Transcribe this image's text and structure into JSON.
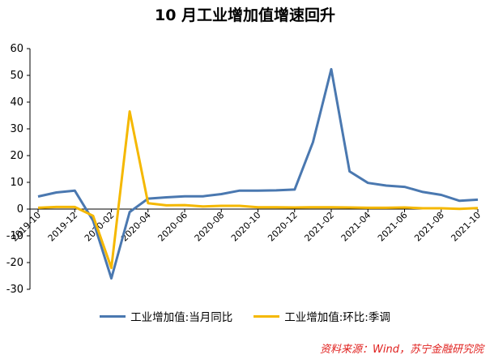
{
  "chart_data": {
    "type": "line",
    "title": "10 月工业增加值增速回升",
    "ylim": [
      -30,
      60
    ],
    "yticks": [
      -30,
      -20,
      -10,
      0,
      10,
      20,
      30,
      40,
      50,
      60
    ],
    "categories": [
      "2019-10",
      "2019-11",
      "2019-12",
      "2020-01",
      "2020-02",
      "2020-03",
      "2020-04",
      "2020-05",
      "2020-06",
      "2020-07",
      "2020-08",
      "2020-09",
      "2020-10",
      "2020-11",
      "2020-12",
      "2021-01",
      "2021-02",
      "2021-03",
      "2021-04",
      "2021-05",
      "2021-06",
      "2021-07",
      "2021-08",
      "2021-09",
      "2021-10"
    ],
    "tick_labels": [
      "2019-10",
      "2019-12",
      "2020-02",
      "2020-04",
      "2020-06",
      "2020-08",
      "2020-10",
      "2020-12",
      "2021-02",
      "2021-04",
      "2021-06",
      "2021-08",
      "2021-10"
    ],
    "grid": false,
    "legend_position": "bottom",
    "series": [
      {
        "name": "工业增加值:当月同比",
        "color": "#4a78b0",
        "values": [
          4.7,
          6.2,
          6.9,
          -4.3,
          -25.9,
          -1.1,
          3.9,
          4.4,
          4.8,
          4.8,
          5.6,
          6.9,
          6.9,
          7.0,
          7.3,
          25.0,
          52.3,
          14.1,
          9.8,
          8.8,
          8.3,
          6.4,
          5.3,
          3.1,
          3.5
        ]
      },
      {
        "name": "工业增加值:环比:季调",
        "color": "#f5b800",
        "values": [
          0.5,
          0.8,
          0.8,
          -2.5,
          -22.0,
          36.5,
          2.2,
          1.4,
          1.5,
          1.0,
          1.2,
          1.2,
          0.7,
          0.7,
          0.6,
          0.7,
          0.7,
          0.6,
          0.5,
          0.5,
          0.6,
          0.3,
          0.3,
          0.1,
          0.4
        ]
      }
    ]
  },
  "source_text": "资料来源：Wind，苏宁金融研究院"
}
